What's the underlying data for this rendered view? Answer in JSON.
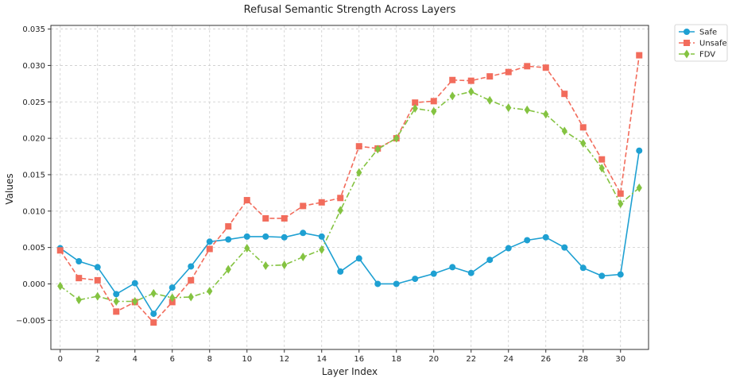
{
  "chart_data": {
    "type": "line",
    "title": "Refusal Semantic Strength Across Layers",
    "xlabel": "Layer Index",
    "ylabel": "Values",
    "x": [
      0,
      1,
      2,
      3,
      4,
      5,
      6,
      7,
      8,
      9,
      10,
      11,
      12,
      13,
      14,
      15,
      16,
      17,
      18,
      19,
      20,
      21,
      22,
      23,
      24,
      25,
      26,
      27,
      28,
      29,
      30,
      31
    ],
    "x_ticks": [
      0,
      2,
      4,
      6,
      8,
      10,
      12,
      14,
      16,
      18,
      20,
      22,
      24,
      26,
      28,
      30
    ],
    "y_ticks": [
      -0.005,
      0.0,
      0.005,
      0.01,
      0.015,
      0.02,
      0.025,
      0.03,
      0.035
    ],
    "y_tick_labels": [
      "−0.005",
      "0.000",
      "0.005",
      "0.010",
      "0.015",
      "0.020",
      "0.025",
      "0.030",
      "0.035"
    ],
    "xlim": [
      -0.5,
      31.5
    ],
    "ylim": [
      -0.009,
      0.0355
    ],
    "grid": true,
    "legend_position": "outside top-right",
    "series": [
      {
        "name": "Safe",
        "color": "#1ea0d2",
        "marker": "circle",
        "line": "solid",
        "values": [
          0.0049,
          0.0031,
          0.0023,
          -0.0014,
          0.0001,
          -0.0041,
          -0.0005,
          0.0024,
          0.0058,
          0.0061,
          0.0065,
          0.0065,
          0.0064,
          0.007,
          0.0065,
          0.0017,
          0.0035,
          0.0,
          0.0,
          0.0007,
          0.0014,
          0.0023,
          0.0015,
          0.0033,
          0.0049,
          0.006,
          0.0064,
          0.005,
          0.0022,
          0.0011,
          0.0013,
          0.0183
        ]
      },
      {
        "name": "Unsafe",
        "color": "#f26c5c",
        "marker": "square",
        "line": "dashed",
        "values": [
          0.0046,
          0.0008,
          0.0005,
          -0.0038,
          -0.0025,
          -0.0053,
          -0.0025,
          0.0005,
          0.0048,
          0.0079,
          0.0115,
          0.009,
          0.009,
          0.0107,
          0.0112,
          0.0118,
          0.0189,
          0.0186,
          0.02,
          0.0249,
          0.0251,
          0.028,
          0.0279,
          0.0285,
          0.0291,
          0.0299,
          0.0297,
          0.0261,
          0.0215,
          0.0171,
          0.0124,
          0.0314
        ]
      },
      {
        "name": "FDV",
        "color": "#84c341",
        "marker": "diamond",
        "line": "dashdot",
        "values": [
          -0.0003,
          -0.0022,
          -0.0017,
          -0.0024,
          -0.0024,
          -0.0013,
          -0.0019,
          -0.0018,
          -0.001,
          0.002,
          0.0049,
          0.0025,
          0.0026,
          0.0037,
          0.0047,
          0.0101,
          0.0153,
          0.0185,
          0.02,
          0.0241,
          0.0237,
          0.0258,
          0.0264,
          0.0252,
          0.0242,
          0.0239,
          0.0233,
          0.021,
          0.0193,
          0.0159,
          0.011,
          0.0132
        ]
      }
    ]
  }
}
